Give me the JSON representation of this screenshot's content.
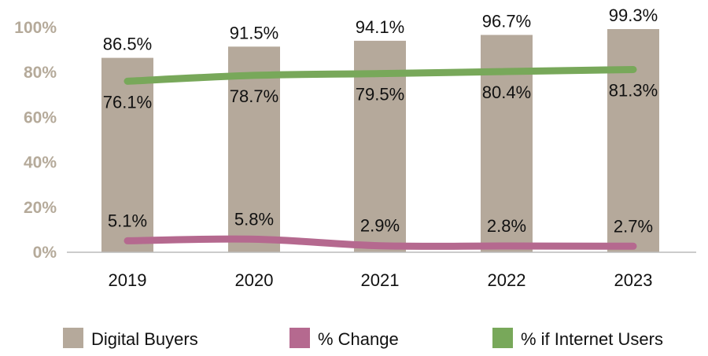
{
  "chart_data": {
    "type": "bar",
    "categories": [
      "2019",
      "2020",
      "2021",
      "2022",
      "2023"
    ],
    "series": [
      {
        "name": "Digital Buyers",
        "type": "bar",
        "color": "#b5a99b",
        "values": [
          86.5,
          91.5,
          94.1,
          96.7,
          99.3
        ],
        "labels": [
          "86.5%",
          "91.5%",
          "94.1%",
          "96.7%",
          "99.3%"
        ]
      },
      {
        "name": "% Change",
        "type": "line",
        "color": "#b5698f",
        "values": [
          5.1,
          5.8,
          2.9,
          2.8,
          2.7
        ],
        "labels": [
          "5.1%",
          "5.8%",
          "2.9%",
          "2.8%",
          "2.7%"
        ]
      },
      {
        "name": "% if Internet Users",
        "type": "line",
        "color": "#78a85a",
        "values": [
          76.1,
          78.7,
          79.5,
          80.4,
          81.3
        ],
        "labels": [
          "76.1%",
          "78.7%",
          "79.5%",
          "80.4%",
          "81.3%"
        ]
      }
    ],
    "y_ticks": [
      "0%",
      "20%",
      "40%",
      "60%",
      "80%",
      "100%"
    ],
    "ylim": [
      0,
      100
    ],
    "grid": false,
    "legend_position": "bottom"
  }
}
